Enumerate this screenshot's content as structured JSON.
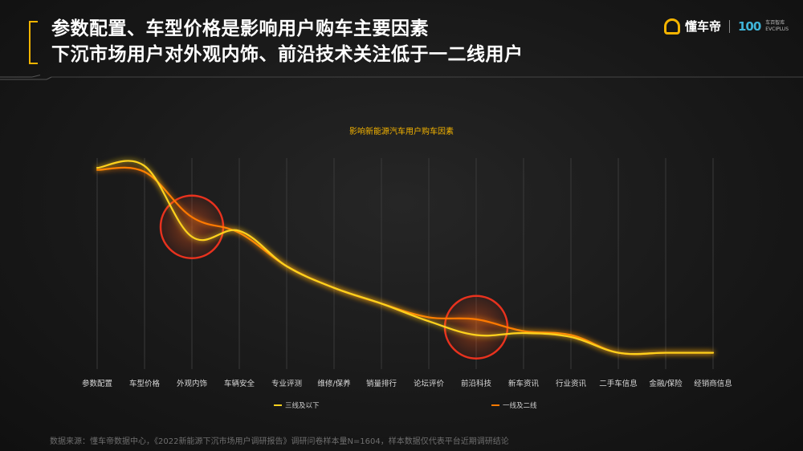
{
  "headline": {
    "line1": "参数配置、车型价格是影响用户购车主要因素",
    "line2": "下沉市场用户对外观内饰、前沿技术关注低于一二线用户"
  },
  "brand": {
    "name": "懂车帝",
    "badge": "100",
    "sub_line1": "车百智库",
    "sub_line2": "EVCIPLUS"
  },
  "source_note": "数据来源：懂车帝数据中心，《2022新能源下沉市场用户调研报告》调研问卷样本量N=1604，样本数据仅代表平台近期调研结论",
  "colors": {
    "accent": "#f5b400",
    "series_lower": "#ffd21f",
    "series_upper": "#ff7a00",
    "highlight_circle": "#e8321e"
  },
  "chart_data": {
    "type": "line",
    "title": "影响新能源汽车用户购车因素",
    "categories": [
      "参数配置",
      "车型价格",
      "外观内饰",
      "车辆安全",
      "专业评测",
      "维修/保养",
      "销量排行",
      "论坛评价",
      "前沿科技",
      "新车资讯",
      "行业资讯",
      "二手车信息",
      "金融/保险",
      "经销商信息"
    ],
    "series": [
      {
        "name": "三线及以下",
        "color": "#ffd21f",
        "values": [
          95,
          96,
          60,
          63,
          45,
          34,
          26,
          17,
          10,
          11,
          9,
          1,
          1,
          1
        ]
      },
      {
        "name": "一线及二线",
        "color": "#ff7a00",
        "values": [
          94,
          93,
          70,
          62,
          45,
          34,
          26,
          19,
          18,
          12,
          10,
          1,
          1,
          1
        ]
      }
    ],
    "ylim": [
      0,
      100
    ],
    "grid": "vertical",
    "legend": "bottom",
    "highlights": [
      "外观内饰",
      "前沿科技"
    ]
  }
}
